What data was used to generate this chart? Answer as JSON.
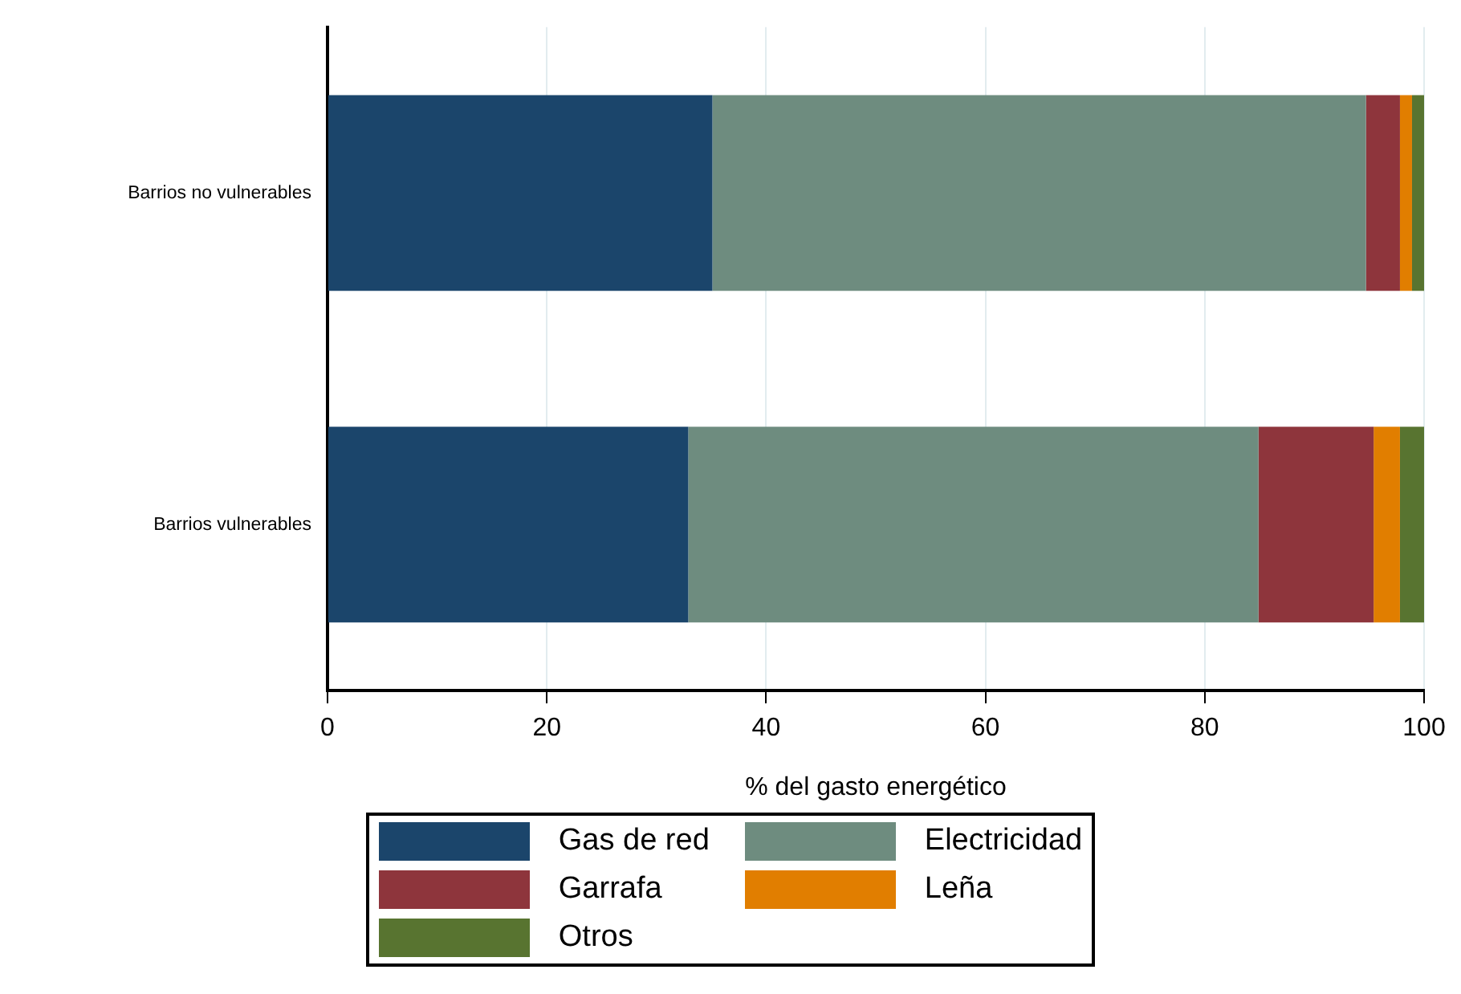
{
  "chart_data": {
    "type": "bar",
    "orientation": "horizontal",
    "stacked": true,
    "xlabel": "% del gasto energético",
    "categories": [
      "Barrios no vulnerables",
      "Barrios vulnerables"
    ],
    "series": [
      {
        "name": "Gas de red",
        "color": "#1b456b",
        "values": [
          35.1,
          32.9
        ]
      },
      {
        "name": "Electricidad",
        "color": "#6e8c7f",
        "values": [
          59.6,
          52.0
        ]
      },
      {
        "name": "Garrafa",
        "color": "#8e353c",
        "values": [
          3.1,
          10.5
        ]
      },
      {
        "name": "Leña",
        "color": "#e17e00",
        "values": [
          1.1,
          2.4
        ]
      },
      {
        "name": "Otros",
        "color": "#587430",
        "values": [
          1.1,
          2.2
        ]
      }
    ],
    "xlim": [
      0,
      100
    ],
    "xticks": [
      0,
      20,
      40,
      60,
      80,
      100
    ],
    "grid": "x",
    "legend": "bottom"
  }
}
